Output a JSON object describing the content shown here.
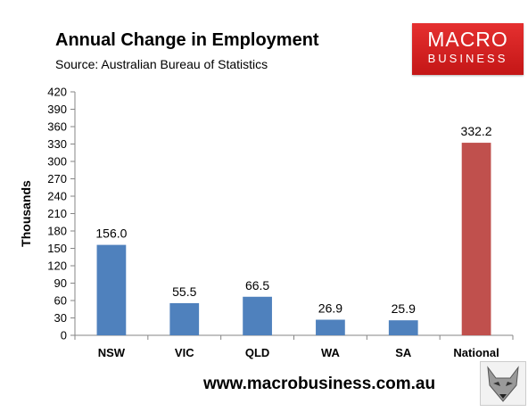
{
  "header": {
    "title": "Annual Change in Employment",
    "subtitle": "Source: Australian Bureau of Statistics"
  },
  "logo": {
    "line1": "MACRO",
    "line2": "BUSINESS"
  },
  "footer": {
    "url": "www.macrobusiness.com.au"
  },
  "chart_data": {
    "type": "bar",
    "categories": [
      "NSW",
      "VIC",
      "QLD",
      "WA",
      "SA",
      "National"
    ],
    "values": [
      156.0,
      55.5,
      66.5,
      26.9,
      25.9,
      332.2
    ],
    "data_labels": [
      "156.0",
      "55.5",
      "66.5",
      "26.9",
      "25.9",
      "332.2"
    ],
    "ylabel": "Thousands",
    "ylim": [
      0,
      420
    ],
    "yticks": [
      0,
      30,
      60,
      90,
      120,
      150,
      180,
      210,
      240,
      270,
      300,
      330,
      360,
      390,
      420
    ],
    "grid": false,
    "colors": [
      "#4f81bd",
      "#4f81bd",
      "#4f81bd",
      "#4f81bd",
      "#4f81bd",
      "#c0504d"
    ]
  }
}
